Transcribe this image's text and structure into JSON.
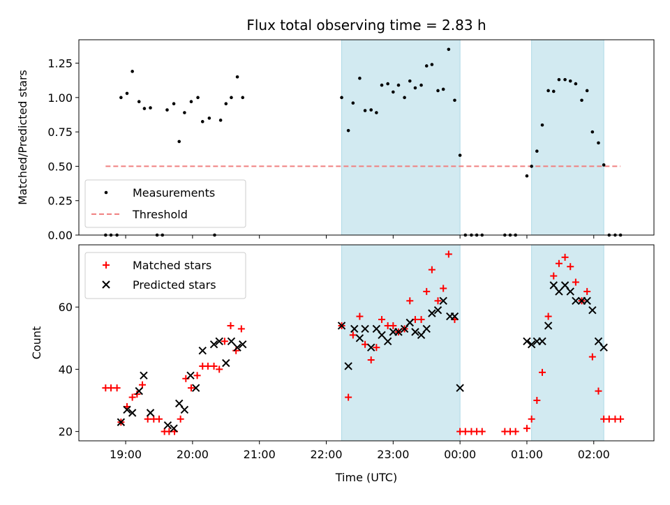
{
  "chart_data": [
    {
      "type": "scatter",
      "title": "Flux total observing time = 2.83 h",
      "xlabel": "",
      "ylabel": "Matched/Predicted stars",
      "ylim": [
        0,
        1.42
      ],
      "yticks": [
        0,
        0.25,
        0.5,
        0.75,
        1.0,
        1.25
      ],
      "ytick_labels": [
        "0.00",
        "0.25",
        "0.50",
        "0.75",
        "1.00",
        "1.25"
      ],
      "xlim_hours": [
        18.3,
        26.9
      ],
      "legend": {
        "placement": "lower-left",
        "entries": [
          "Measurements",
          "Threshold"
        ]
      },
      "threshold": {
        "name": "Threshold",
        "y": 0.5,
        "x_range": [
          18.7,
          26.4
        ],
        "color": "#f08080",
        "style": "dashed"
      },
      "shaded_regions": [
        [
          22.23,
          24.0
        ],
        [
          25.07,
          26.15
        ]
      ],
      "shade_color": "#add8e6",
      "series": [
        {
          "name": "Measurements",
          "color": "#000000",
          "marker": "dot",
          "x": [
            18.7,
            18.78,
            18.87,
            18.93,
            19.02,
            19.1,
            19.2,
            19.28,
            19.37,
            19.47,
            19.55,
            19.62,
            19.72,
            19.8,
            19.88,
            19.98,
            20.08,
            20.15,
            20.25,
            20.33,
            20.42,
            20.5,
            20.58,
            20.67,
            20.75,
            22.23,
            22.33,
            22.4,
            22.5,
            22.58,
            22.67,
            22.75,
            22.83,
            22.92,
            23.0,
            23.08,
            23.17,
            23.25,
            23.33,
            23.42,
            23.5,
            23.58,
            23.67,
            23.75,
            23.83,
            23.92,
            24.0,
            24.08,
            24.17,
            24.25,
            24.33,
            24.67,
            24.75,
            24.83,
            25.0,
            25.07,
            25.15,
            25.23,
            25.32,
            25.4,
            25.48,
            25.57,
            25.65,
            25.73,
            25.82,
            25.9,
            25.98,
            26.07,
            26.15,
            26.23,
            26.32,
            26.4
          ],
          "y": [
            0,
            0,
            0,
            1.0,
            1.03,
            1.19,
            0.97,
            0.92,
            0.925,
            0,
            0,
            0.91,
            0.955,
            0.68,
            0.89,
            0.97,
            1.0,
            0.825,
            0.85,
            0,
            0.835,
            0.955,
            1.0,
            1.15,
            1.0,
            1.0,
            0.76,
            0.96,
            1.14,
            0.905,
            0.91,
            0.89,
            1.09,
            1.1,
            1.04,
            1.09,
            1.0,
            1.12,
            1.07,
            1.09,
            1.23,
            1.24,
            1.05,
            1.06,
            1.35,
            0.98,
            0.58,
            0,
            0,
            0,
            0,
            0,
            0,
            0,
            0.43,
            0.5,
            0.61,
            0.8,
            1.05,
            1.045,
            1.13,
            1.13,
            1.12,
            1.1,
            0.98,
            1.05,
            0.75,
            0.67,
            0.51,
            0,
            0,
            0
          ]
        }
      ]
    },
    {
      "type": "scatter",
      "title": "",
      "xlabel": "Time (UTC)",
      "ylabel": "Count",
      "ylim": [
        17,
        80
      ],
      "yticks": [
        20,
        40,
        60
      ],
      "ytick_labels": [
        "20",
        "40",
        "60"
      ],
      "xlim_hours": [
        18.3,
        26.9
      ],
      "xticks_hours": [
        19,
        20,
        21,
        22,
        23,
        24,
        25,
        26
      ],
      "xtick_labels": [
        "19:00",
        "20:00",
        "21:00",
        "22:00",
        "23:00",
        "00:00",
        "01:00",
        "02:00"
      ],
      "legend": {
        "placement": "top-left",
        "entries": [
          "Matched stars",
          "Predicted stars"
        ]
      },
      "shaded_regions": [
        [
          22.23,
          24.0
        ],
        [
          25.07,
          26.15
        ]
      ],
      "shade_color": "#add8e6",
      "series": [
        {
          "name": "Matched stars",
          "color": "#ff0000",
          "marker": "plus",
          "x": [
            18.7,
            18.78,
            18.87,
            18.93,
            19.02,
            19.1,
            19.17,
            19.25,
            19.33,
            19.42,
            19.5,
            19.58,
            19.65,
            19.73,
            19.82,
            19.9,
            19.98,
            20.07,
            20.15,
            20.23,
            20.32,
            20.4,
            20.48,
            20.57,
            20.65,
            20.73,
            22.23,
            22.33,
            22.4,
            22.5,
            22.58,
            22.67,
            22.75,
            22.83,
            22.92,
            23.0,
            23.08,
            23.17,
            23.25,
            23.33,
            23.42,
            23.5,
            23.58,
            23.67,
            23.75,
            23.83,
            23.92,
            24.0,
            24.08,
            24.17,
            24.25,
            24.33,
            24.67,
            24.75,
            24.83,
            25.0,
            25.07,
            25.15,
            25.23,
            25.32,
            25.4,
            25.48,
            25.57,
            25.65,
            25.73,
            25.82,
            25.9,
            25.98,
            26.07,
            26.15,
            26.23,
            26.32,
            26.4
          ],
          "y": [
            34,
            34,
            34,
            23,
            28,
            31,
            32,
            35,
            24,
            24,
            24,
            20,
            20,
            20,
            24,
            37,
            34,
            38,
            41,
            41,
            41,
            40,
            49,
            54,
            46,
            53,
            54,
            31,
            51,
            57,
            48,
            43,
            47,
            56,
            54,
            54,
            52,
            53,
            62,
            56,
            56,
            65,
            72,
            62,
            66,
            77,
            56,
            20,
            20,
            20,
            20,
            20,
            20,
            20,
            20,
            21,
            24,
            30,
            39,
            57,
            70,
            74,
            76,
            73,
            68,
            62,
            65,
            44,
            33,
            24,
            24,
            24,
            24
          ]
        },
        {
          "name": "Predicted stars",
          "color": "#000000",
          "marker": "x",
          "x": [
            18.93,
            19.02,
            19.1,
            19.2,
            19.27,
            19.37,
            19.63,
            19.72,
            19.8,
            19.88,
            19.97,
            20.05,
            20.15,
            20.32,
            20.4,
            20.5,
            20.58,
            20.67,
            20.75,
            22.23,
            22.33,
            22.42,
            22.5,
            22.58,
            22.67,
            22.75,
            22.83,
            22.92,
            23.0,
            23.08,
            23.17,
            23.25,
            23.33,
            23.42,
            23.5,
            23.58,
            23.67,
            23.75,
            23.85,
            23.92,
            24.0,
            25.0,
            25.07,
            25.15,
            25.23,
            25.32,
            25.4,
            25.48,
            25.57,
            25.65,
            25.73,
            25.82,
            25.9,
            25.98,
            26.07,
            26.15
          ],
          "y": [
            23,
            27,
            26,
            33,
            38,
            26,
            22,
            21,
            29,
            27,
            38,
            34,
            46,
            48,
            49,
            42,
            49,
            47,
            48,
            54,
            41,
            53,
            50,
            53,
            47,
            53,
            51,
            49,
            52,
            52,
            53,
            55,
            52,
            51,
            53,
            58,
            59,
            62,
            57,
            57,
            34,
            49,
            48,
            49,
            49,
            54,
            67,
            65,
            67,
            65,
            62,
            62,
            62,
            59,
            49,
            47
          ]
        }
      ]
    }
  ]
}
